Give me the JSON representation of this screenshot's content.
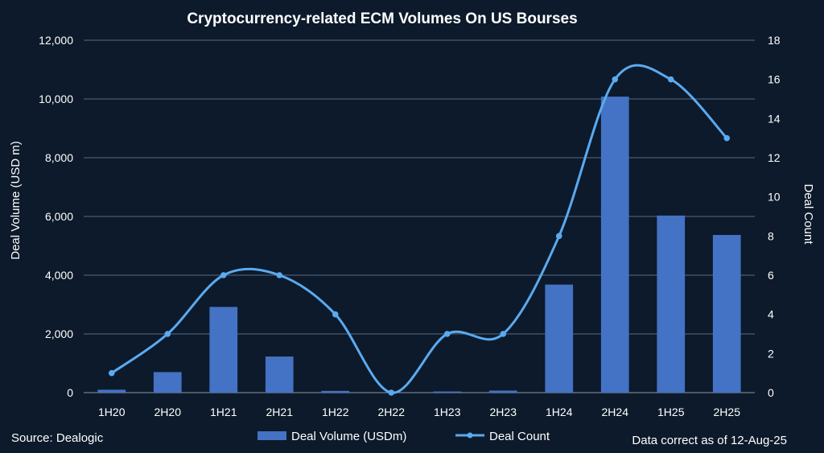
{
  "chart_data": {
    "type": "bar",
    "title": "Cryptocurrency-related ECM Volumes On US Bourses",
    "categories": [
      "1H20",
      "2H20",
      "1H21",
      "2H21",
      "1H22",
      "2H22",
      "1H23",
      "2H23",
      "1H24",
      "2H24",
      "1H25",
      "2H25"
    ],
    "series": [
      {
        "name": "Deal Volume (USDm)",
        "type": "bar",
        "axis": "left",
        "color": "#4472c4",
        "values": [
          100,
          700,
          2920,
          1230,
          60,
          0,
          40,
          70,
          3680,
          10080,
          6030,
          5370
        ]
      },
      {
        "name": "Deal Count",
        "type": "line",
        "axis": "right",
        "color": "#5aaaf0",
        "values": [
          1,
          3,
          6,
          6,
          4,
          0,
          3,
          3,
          8,
          16,
          16,
          13
        ]
      }
    ],
    "ylabel": "Deal Volume (USD m)",
    "ylim": [
      0,
      12000
    ],
    "y_ticks": [
      "0",
      "2,000",
      "4,000",
      "6,000",
      "8,000",
      "10,000",
      "12,000"
    ],
    "y2label": "Deal Count",
    "y2lim": [
      0,
      18
    ],
    "y2_ticks": [
      "0",
      "2",
      "4",
      "6",
      "8",
      "10",
      "12",
      "14",
      "16",
      "18"
    ],
    "grid": true,
    "legend_position": "bottom-center",
    "source": "Source: Dealogic",
    "note": "Data correct as of 12-Aug-25",
    "colors": {
      "background": "#0c1a2b",
      "grid": "#5a6a80",
      "text": "#ffffff"
    }
  }
}
